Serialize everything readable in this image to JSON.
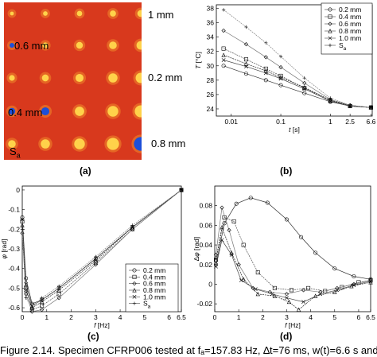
{
  "panel_a": {
    "label": "(a)",
    "defect_labels": {
      "d1": "1 mm",
      "d2": "0.6 mm",
      "d3": "0.2 mm",
      "d4": "0.4 mm",
      "d5": "0.8 mm",
      "sa": "S",
      "sa_sub": "a"
    },
    "colors": {
      "background": "#d8391d",
      "hot": "#ffd24a",
      "cold": "#1d4fd8"
    }
  },
  "panel_b": {
    "label": "(b)"
  },
  "panel_c": {
    "label": "(c)"
  },
  "panel_d": {
    "label": "(d)"
  },
  "caption": "Figure 2.14. Specimen CFRP006 tested at fₐ=157.83 Hz, ∆t=76 ms, w(t)=6.6 s and",
  "chart_data": [
    {
      "id": "b",
      "type": "line",
      "xscale": "log",
      "xlim": [
        0.005,
        7
      ],
      "ylim": [
        23,
        38.5
      ],
      "xlabel": "t",
      "xunit": "[s]",
      "ylabel": "T",
      "yunit": "[°C]",
      "xticks": [
        0.01,
        0.1,
        1,
        2.5,
        6.6
      ],
      "xtick_labels": [
        "0.01",
        "0.1",
        "1",
        "2.5",
        "6.6"
      ],
      "yticks": [
        24,
        26,
        28,
        30,
        32,
        34,
        36,
        38
      ],
      "legend": [
        "0.2 mm",
        "0.4 mm",
        "0.6 mm",
        "0.8 mm",
        "1.0 mm",
        "S",
        "a"
      ],
      "series": [
        {
          "name": "0.2 mm",
          "x": [
            0.007,
            0.02,
            0.05,
            0.1,
            0.3,
            1,
            2.5,
            6.6
          ],
          "y": [
            30.0,
            28.9,
            28.0,
            27.3,
            26.2,
            25.0,
            24.4,
            24.2
          ]
        },
        {
          "name": "0.4 mm",
          "x": [
            0.007,
            0.02,
            0.05,
            0.1,
            0.3,
            1,
            2.5,
            6.6
          ],
          "y": [
            32.4,
            30.9,
            29.6,
            28.6,
            26.9,
            25.1,
            24.4,
            24.2
          ]
        },
        {
          "name": "0.6 mm",
          "x": [
            0.007,
            0.02,
            0.05,
            0.1,
            0.3,
            1,
            2.5,
            6.6
          ],
          "y": [
            34.9,
            33.0,
            31.2,
            29.8,
            27.6,
            25.3,
            24.5,
            24.2
          ]
        },
        {
          "name": "0.8 mm",
          "x": [
            0.007,
            0.02,
            0.05,
            0.1,
            0.3,
            1,
            2.5,
            6.6
          ],
          "y": [
            31.5,
            30.3,
            29.3,
            28.4,
            27.0,
            25.2,
            24.5,
            24.2
          ]
        },
        {
          "name": "1.0 mm",
          "x": [
            0.007,
            0.02,
            0.05,
            0.1,
            0.3,
            1,
            2.5,
            6.6
          ],
          "y": [
            30.8,
            29.9,
            29.0,
            28.2,
            26.8,
            25.1,
            24.4,
            24.2
          ]
        },
        {
          "name": "S",
          "x": [
            0.007,
            0.02,
            0.05,
            0.1,
            0.3,
            1,
            2.5,
            6.6
          ],
          "y": [
            37.8,
            35.4,
            33.2,
            31.3,
            28.3,
            25.5,
            24.5,
            24.2
          ]
        }
      ]
    },
    {
      "id": "c",
      "type": "line",
      "xlim": [
        0,
        6.5
      ],
      "ylim": [
        -0.62,
        0.02
      ],
      "xlabel": "f",
      "xunit": "[Hz]",
      "ylabel": "φ",
      "yunit": "[rad]",
      "xticks": [
        0,
        1,
        2,
        3,
        4,
        5,
        6,
        6.5
      ],
      "xtick_labels": [
        "0",
        "1",
        "2",
        "3",
        "4",
        "5",
        "6",
        "6.5"
      ],
      "yticks": [
        0,
        -0.1,
        -0.2,
        -0.3,
        -0.4,
        -0.5,
        -0.6
      ],
      "ytick_labels": [
        "0",
        "-0.1",
        "-0.2",
        "-0.3",
        "-0.4",
        "-0.5",
        "-0.6"
      ],
      "legend": [
        "0.2 mm",
        "0.4 mm",
        "0.6 mm",
        "0.8 mm",
        "1.0 mm",
        "S",
        "a"
      ],
      "series": [
        {
          "name": "0.2 mm",
          "x": [
            0,
            0.15,
            0.4,
            0.8,
            1.5,
            3,
            4.5,
            6.5
          ],
          "y": [
            -0.14,
            -0.45,
            -0.58,
            -0.56,
            -0.5,
            -0.35,
            -0.19,
            0.0
          ]
        },
        {
          "name": "0.4 mm",
          "x": [
            0,
            0.15,
            0.4,
            0.8,
            1.5,
            3,
            4.5,
            6.5
          ],
          "y": [
            -0.16,
            -0.5,
            -0.61,
            -0.59,
            -0.53,
            -0.37,
            -0.2,
            0.0
          ]
        },
        {
          "name": "0.6 mm",
          "x": [
            0,
            0.15,
            0.4,
            0.8,
            1.5,
            3,
            4.5,
            6.5
          ],
          "y": [
            -0.22,
            -0.53,
            -0.62,
            -0.61,
            -0.55,
            -0.38,
            -0.2,
            0.0
          ]
        },
        {
          "name": "0.8 mm",
          "x": [
            0,
            0.15,
            0.4,
            0.8,
            1.5,
            3,
            4.5,
            6.5
          ],
          "y": [
            -0.18,
            -0.51,
            -0.6,
            -0.57,
            -0.51,
            -0.36,
            -0.19,
            0.0
          ]
        },
        {
          "name": "1.0 mm",
          "x": [
            0,
            0.15,
            0.4,
            0.8,
            1.5,
            3,
            4.5,
            6.5
          ],
          "y": [
            -0.15,
            -0.48,
            -0.59,
            -0.56,
            -0.5,
            -0.35,
            -0.19,
            0.0
          ]
        },
        {
          "name": "S",
          "x": [
            0,
            0.15,
            0.4,
            0.8,
            1.5,
            3,
            4.5,
            6.5
          ],
          "y": [
            -0.2,
            -0.55,
            -0.6,
            -0.55,
            -0.49,
            -0.34,
            -0.18,
            0.0
          ]
        }
      ]
    },
    {
      "id": "d",
      "type": "line",
      "xlim": [
        0,
        6.5
      ],
      "ylim": [
        -0.028,
        0.1
      ],
      "xlabel": "f",
      "xunit": "[Hz]",
      "ylabel": "∆φ",
      "yunit": "[rad]",
      "xticks": [
        0,
        1,
        2,
        3,
        4,
        5,
        6,
        6.5
      ],
      "xtick_labels": [
        "0",
        "1",
        "2",
        "3",
        "4",
        "5",
        "6",
        "6.5"
      ],
      "yticks": [
        0.08,
        0.06,
        0.04,
        0.02,
        0,
        -0.02
      ],
      "ytick_labels": [
        "0.08",
        "0.06",
        "0.04",
        "0.02",
        "0",
        "-0.02"
      ],
      "series": [
        {
          "name": "0.6 mm",
          "x": [
            0.05,
            0.4,
            0.9,
            1.5,
            2.2,
            3,
            3.6,
            4.2,
            5,
            5.8,
            6.5
          ],
          "y": [
            0.02,
            0.062,
            0.082,
            0.088,
            0.083,
            0.066,
            0.048,
            0.032,
            0.016,
            0.008,
            0.005
          ]
        },
        {
          "name": "0.4 mm",
          "x": [
            0.05,
            0.4,
            0.8,
            1.2,
            1.8,
            2.5,
            3.2,
            3.9,
            4.6,
            5.3,
            6,
            6.5
          ],
          "y": [
            0.025,
            0.068,
            0.064,
            0.04,
            0.012,
            -0.004,
            -0.006,
            -0.004,
            -0.007,
            -0.003,
            0.002,
            0.004
          ]
        },
        {
          "name": "0.2 mm",
          "x": [
            0.05,
            0.3,
            0.6,
            1.0,
            1.6,
            2.3,
            3.0,
            3.7,
            4.4,
            5.1,
            5.8,
            6.5
          ],
          "y": [
            0.03,
            0.078,
            0.055,
            0.02,
            -0.004,
            -0.008,
            -0.01,
            -0.006,
            -0.008,
            -0.004,
            0.0,
            0.004
          ]
        },
        {
          "name": "0.8 mm",
          "x": [
            0.05,
            0.3,
            0.7,
            1.2,
            1.8,
            2.5,
            3.1,
            3.5,
            4.2,
            5.0,
            5.7,
            6.5
          ],
          "y": [
            0.025,
            0.058,
            0.032,
            0.005,
            -0.01,
            -0.012,
            -0.018,
            -0.026,
            -0.012,
            -0.008,
            -0.002,
            0.002
          ]
        },
        {
          "name": "1.0 mm",
          "x": [
            0.05,
            0.3,
            0.7,
            1.1,
            1.7,
            2.4,
            3.0,
            3.7,
            4.4,
            5.1,
            5.8,
            6.5
          ],
          "y": [
            0.018,
            0.045,
            0.03,
            0.004,
            -0.005,
            -0.01,
            -0.014,
            -0.018,
            -0.01,
            -0.006,
            -0.001,
            0.003
          ]
        }
      ]
    }
  ]
}
